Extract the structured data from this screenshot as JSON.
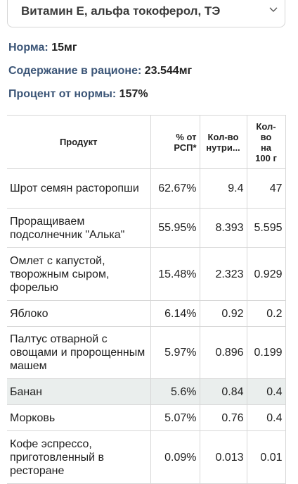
{
  "selector": {
    "value": "Витамин Е, альфа токоферол, ТЭ"
  },
  "stats": {
    "norm_label": "Норма:",
    "norm_value": "15мг",
    "content_label": "Содержание в рационе:",
    "content_value": "23.544мг",
    "percent_label": "Процент от нормы:",
    "percent_value": "157%"
  },
  "table": {
    "headers": {
      "product": "Продукт",
      "rsp_1": "% от",
      "rsp_2": "РСП*",
      "amt_1": "Кол-во",
      "amt_2": "нутри...",
      "per100_1": "Кол-",
      "per100_2": "во",
      "per100_3": "на",
      "per100_4": "100 г"
    },
    "rows": [
      {
        "name": "Шрот семян расторопши",
        "rsp": "62.67%",
        "amount": "9.4",
        "per100": "47"
      },
      {
        "name": "Проращиваем подсолнечник \"Алька\"",
        "rsp": "55.95%",
        "amount": "8.393",
        "per100": "5.595"
      },
      {
        "name": "Омлет с капустой, творожным сыром, форелью",
        "rsp": "15.48%",
        "amount": "2.323",
        "per100": "0.929"
      },
      {
        "name": "Яблоко",
        "rsp": "6.14%",
        "amount": "0.92",
        "per100": "0.2"
      },
      {
        "name": "Палтус отварной с овощами и пророщенным машем",
        "rsp": "5.97%",
        "amount": "0.896",
        "per100": "0.199"
      },
      {
        "name": "Банан",
        "rsp": "5.6%",
        "amount": "0.84",
        "per100": "0.4"
      },
      {
        "name": "Морковь",
        "rsp": "5.07%",
        "amount": "0.76",
        "per100": "0.4"
      },
      {
        "name": "Кофе эспрессо, приготовленный в ресторане",
        "rsp": "0.09%",
        "amount": "0.013",
        "per100": "0.01"
      }
    ]
  }
}
